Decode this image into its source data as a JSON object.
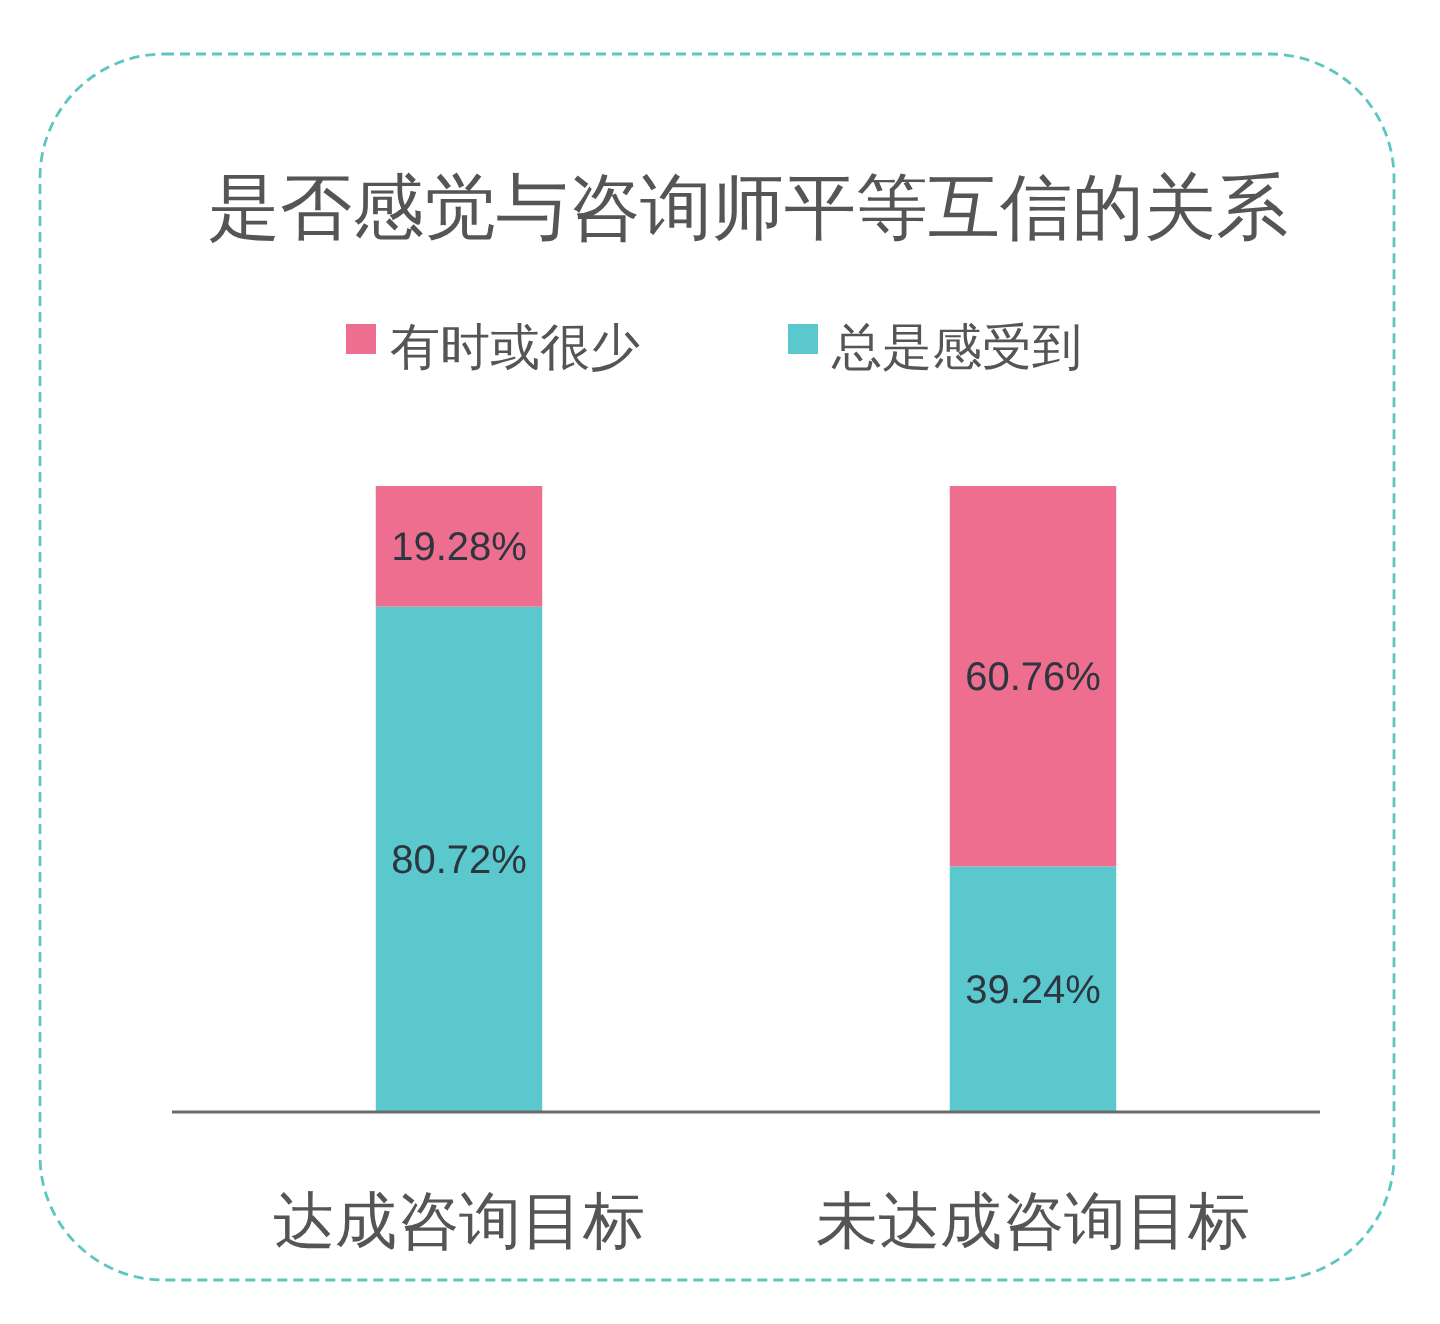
{
  "chart_data": {
    "type": "bar",
    "stacked": true,
    "title": "是否感觉与咨询师平等互信的关系",
    "legend": "top",
    "categories": [
      "达成咨询目标",
      "未达成咨询目标"
    ],
    "series": [
      {
        "name": "总是感受到",
        "color": "#5bc8cd",
        "values": [
          80.72,
          39.24
        ],
        "value_labels": [
          "80.72%",
          "39.24%"
        ]
      },
      {
        "name": "有时或很少",
        "color": "#ee6e8f",
        "values": [
          19.28,
          60.76
        ],
        "value_labels": [
          "19.28%",
          "60.76%"
        ]
      }
    ]
  }
}
